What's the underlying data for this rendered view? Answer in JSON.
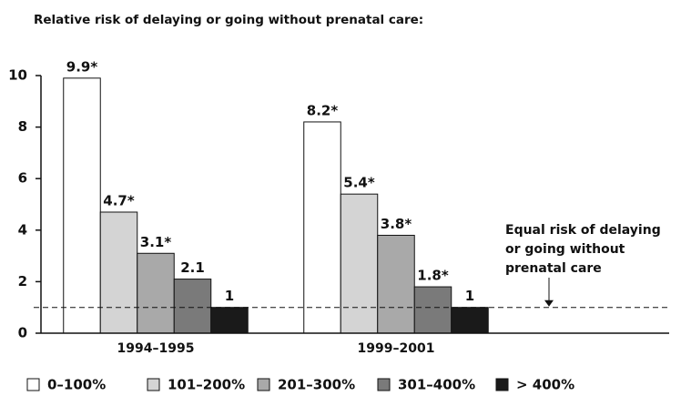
{
  "chart_data": {
    "type": "bar",
    "title": "Relative risk of delaying or going without prenatal care:",
    "categories": [
      "1994–1995",
      "1999–2001"
    ],
    "series": [
      {
        "name": "0–100%",
        "color": "#ffffff",
        "values": [
          9.9,
          8.2
        ],
        "value_labels": [
          "9.9*",
          "8.2*"
        ]
      },
      {
        "name": "101–200%",
        "color": "#d4d4d4",
        "values": [
          4.7,
          5.4
        ],
        "value_labels": [
          "4.7*",
          "5.4*"
        ]
      },
      {
        "name": "201–300%",
        "color": "#a9a9a9",
        "values": [
          3.1,
          3.8
        ],
        "value_labels": [
          "3.1*",
          "3.8*"
        ]
      },
      {
        "name": "301–400%",
        "color": "#7a7a7a",
        "values": [
          2.1,
          1.8
        ],
        "value_labels": [
          "2.1",
          "1.8*"
        ]
      },
      {
        "name": "> 400%",
        "color": "#1a1a1a",
        "values": [
          1,
          1
        ]
      }
    ],
    "ylim": [
      0,
      10
    ],
    "yticks": [
      0,
      2,
      4,
      6,
      8,
      10
    ],
    "reference_line": {
      "value": 1,
      "label": [
        "Equal risk of delaying",
        "or going without",
        "prenatal care"
      ]
    },
    "legend": "bottom"
  }
}
